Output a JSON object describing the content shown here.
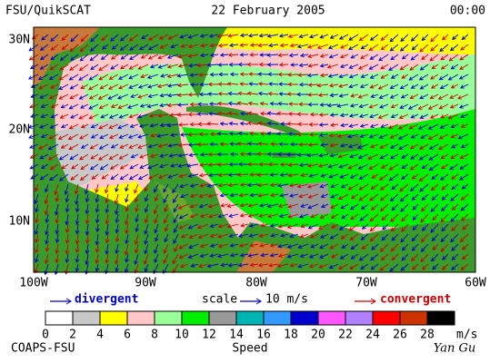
{
  "header": {
    "left": "FSU/QuikSCAT",
    "center": "22 February 2005",
    "right": "00:00"
  },
  "map": {
    "lat_labels": [
      "30N",
      "20N",
      "10N"
    ],
    "lon_labels": [
      "100W",
      "90W",
      "80W",
      "70W",
      "60W"
    ]
  },
  "legend": {
    "divergent": "divergent",
    "divergent_color": "#0000cc",
    "scale": "scale",
    "scale_value": "10 m/s",
    "convergent": "convergent",
    "convergent_color": "#cc0000"
  },
  "colorbar": {
    "ticks": [
      0,
      2,
      4,
      6,
      8,
      10,
      12,
      14,
      16,
      18,
      20,
      22,
      24,
      26,
      28
    ],
    "unit": "m/s",
    "colors": [
      "#ffffff",
      "#c8c8c8",
      "#ffff00",
      "#ffc8c8",
      "#99ff99",
      "#00ee00",
      "#999999",
      "#00b4b4",
      "#3399ff",
      "#0000cc",
      "#ff55ff",
      "#b080ff",
      "#ff0000",
      "#cc3300",
      "#000000"
    ]
  },
  "footer": {
    "left": "COAPS-FSU",
    "center": "Speed",
    "right": "Yan Gu"
  }
}
